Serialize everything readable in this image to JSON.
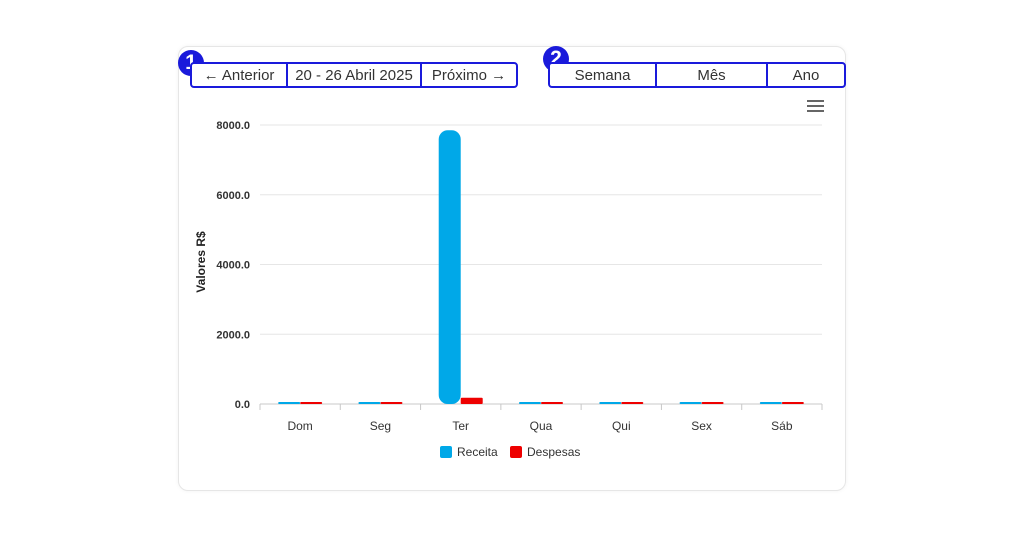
{
  "annotations": {
    "badge_1": "1",
    "badge_2": "2"
  },
  "nav": {
    "prev_label": "← Anterior",
    "date_range": "20 - 26 Abril 2025",
    "next_label": "Próximo →"
  },
  "period": {
    "week_label": "Semana",
    "month_label": "Mês",
    "year_label": "Ano"
  },
  "menu_icon": "hamburger-menu-icon",
  "colors": {
    "receita": "#00a8e8",
    "despesas": "#ee0000",
    "accent": "#1a1adb"
  },
  "chart_data": {
    "type": "bar",
    "categories": [
      "Dom",
      "Seg",
      "Ter",
      "Qua",
      "Qui",
      "Sex",
      "Sáb"
    ],
    "series": [
      {
        "name": "Receita",
        "values": [
          0,
          0,
          7850,
          0,
          0,
          0,
          0
        ]
      },
      {
        "name": "Despesas",
        "values": [
          0,
          0,
          180,
          0,
          0,
          0,
          0
        ]
      }
    ],
    "ylabel": "Valores R$",
    "ylim": [
      0,
      8000
    ],
    "yticks": [
      "0.0",
      "2000.0",
      "4000.0",
      "6000.0",
      "8000.0"
    ],
    "grid": true,
    "legend": "bottom-center"
  }
}
